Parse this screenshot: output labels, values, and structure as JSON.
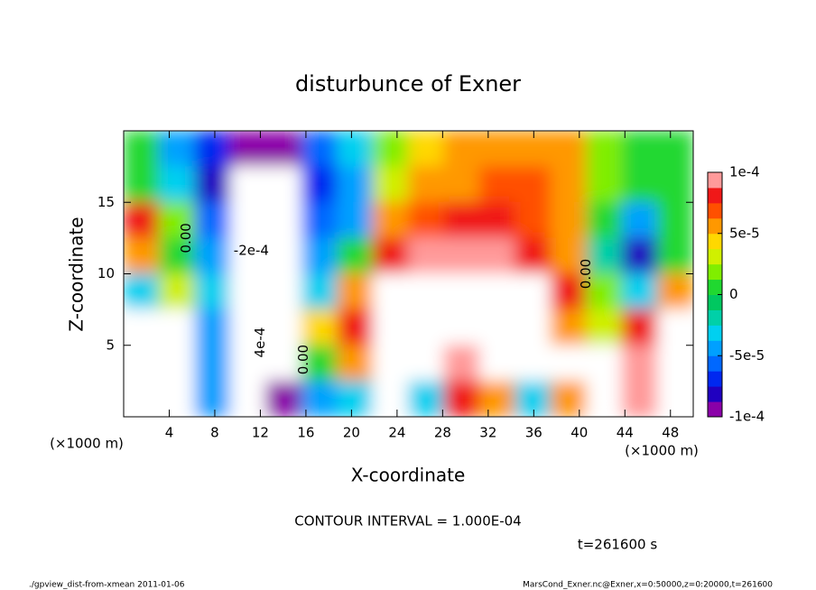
{
  "chart_data": {
    "type": "contour",
    "title": "disturbunce of Exner",
    "x_label": "X-coordinate",
    "y_label": "Z-coordinate",
    "x_unit": "(×1000 m)",
    "xlim": [
      0,
      50
    ],
    "ylim": [
      0,
      20
    ],
    "xticks": [
      4,
      8,
      12,
      16,
      20,
      24,
      28,
      32,
      36,
      40,
      44,
      48
    ],
    "yticks": [
      5,
      10,
      15
    ],
    "zlim": [
      -0.0001,
      0.0001
    ],
    "zticks": [
      {
        "value": -0.0001,
        "label": "-1e-4"
      },
      {
        "value": -5e-05,
        "label": "-5e-5"
      },
      0,
      {
        "value": 5e-05,
        "label": "5e-5"
      },
      {
        "value": 0.0001,
        "label": "1e-4"
      }
    ],
    "colormap": [
      "#8a00a8",
      "#2000c0",
      "#0028f0",
      "#0068ff",
      "#00a0ff",
      "#00d0f0",
      "#00d0a8",
      "#00c860",
      "#20d830",
      "#80ee00",
      "#d0f000",
      "#ffd800",
      "#ff9800",
      "#ff5000",
      "#f01818",
      "#ff9a9a"
    ],
    "z": [
      [
        0,
        -4e-05,
        -7e-05,
        -9e-05,
        -9e-05,
        -6e-05,
        -3e-05,
        2e-05,
        4e-05,
        5e-05,
        5e-05,
        6e-05,
        5e-05,
        2e-05,
        0,
        0
      ],
      [
        0,
        -3e-05,
        -8e-05,
        -0.00012,
        -0.00011,
        -7e-05,
        -4e-05,
        3e-05,
        5e-05,
        6e-05,
        7e-05,
        7e-05,
        6e-05,
        2e-05,
        0,
        0
      ],
      [
        8e-05,
        2e-05,
        -6e-05,
        -0.00015,
        -0.00012,
        -6e-05,
        -4e-05,
        5e-05,
        7e-05,
        8e-05,
        8e-05,
        7e-05,
        5e-05,
        0,
        -5e-05,
        0
      ],
      [
        5e-05,
        1e-05,
        -4e-05,
        -0.0002,
        -0.00015,
        -5e-05,
        1e-05,
        8e-05,
        9e-05,
        9e-05,
        9e-05,
        8e-05,
        6e-05,
        -2e-05,
        -8e-05,
        1e-05
      ],
      [
        -3e-05,
        3e-05,
        -3e-05,
        -0.00025,
        -0.0002,
        -3e-05,
        6e-05,
        0.00015,
        0.0002,
        0.00015,
        0.0002,
        0.00012,
        8e-05,
        2e-05,
        -3e-05,
        6e-05
      ],
      [
        0.00012,
        0.00015,
        -5e-05,
        -0.0003,
        -0.00025,
        4e-05,
        8e-05,
        0.00015,
        0.0002,
        0.00012,
        0.00015,
        0.0002,
        5e-05,
        3e-05,
        8e-05,
        0.00012
      ],
      [
        0.0002,
        0.00025,
        -4e-05,
        -0.00035,
        -0.0002,
        0,
        6e-05,
        -0.00015,
        0.00015,
        0.0001,
        0.00012,
        0.00015,
        0.00015,
        -0.00015,
        0.0001,
        0.00015
      ],
      [
        0.00015,
        0.0002,
        -5e-05,
        -0.00025,
        -0.0001,
        -5e-05,
        -3e-05,
        -0.00015,
        -3e-05,
        8e-05,
        5e-05,
        -3e-05,
        5e-05,
        -0.00015,
        0.0001,
        0.00015
      ]
    ],
    "contour_labels": [
      "0.00",
      "-2e-4",
      "4e-4",
      "0.00",
      "0.00"
    ],
    "contour_interval": "CONTOUR INTERVAL = 1.000E-04",
    "time_label": "t=261600 s",
    "footer_left": "./gpview_dist-from-xmean  2011-01-06",
    "footer_right": "MarsCond_Exner.nc@Exner,x=0:50000,z=0:20000,t=261600"
  }
}
